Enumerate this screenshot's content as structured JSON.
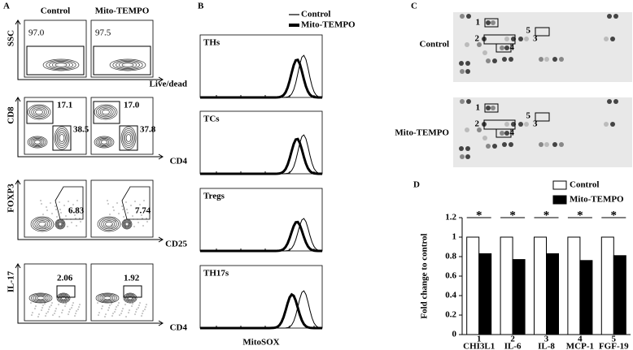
{
  "panels": {
    "A": {
      "label": "A",
      "columns": [
        "Control",
        "Mito-TEMPO"
      ],
      "rows": [
        {
          "y_label": "SSC",
          "x_label": "Live/dead",
          "gates": [
            [
              "97.0"
            ],
            [
              "97.5"
            ]
          ]
        },
        {
          "y_label": "CD8",
          "x_label": "CD4",
          "gates": [
            [
              "17.1",
              "38.5"
            ],
            [
              "17.0",
              "37.8"
            ]
          ]
        },
        {
          "y_label": "FOXP3",
          "x_label": "CD25",
          "gates": [
            [
              "6.83"
            ],
            [
              "7.74"
            ]
          ]
        },
        {
          "y_label": "IL-17",
          "x_label": "CD4",
          "gates": [
            [
              "2.06"
            ],
            [
              "1.92"
            ]
          ]
        }
      ]
    },
    "B": {
      "label": "B",
      "legend": [
        "Control",
        "Mito-TEMPO"
      ],
      "rows": [
        "THs",
        "TCs",
        "Tregs",
        "TH17s"
      ],
      "x_label": "MitoSOX"
    },
    "C": {
      "label": "C",
      "rows": [
        "Control",
        "Mito-TEMPO"
      ],
      "spots": [
        "1",
        "2",
        "3",
        "4",
        "5"
      ]
    },
    "D": {
      "label": "D"
    }
  },
  "chart_data": {
    "type": "bar",
    "categories": [
      "CHI3L1",
      "IL-6",
      "IL-8",
      "MCP-1",
      "FGF-19"
    ],
    "category_numbers": [
      "1",
      "2",
      "3",
      "4",
      "5"
    ],
    "significance": [
      "*",
      "*",
      "*",
      "*",
      "*"
    ],
    "y_label": "Fold change to control",
    "series": [
      {
        "name": "Control",
        "color": "#ffffff",
        "values": [
          1,
          1,
          1,
          1,
          1
        ]
      },
      {
        "name": "Mito-TEMPO",
        "color": "#000000",
        "values": [
          0.83,
          0.77,
          0.83,
          0.76,
          0.81
        ]
      }
    ],
    "ylim": [
      0,
      1.2
    ],
    "yticks": [
      0,
      0.2,
      0.4,
      0.6,
      0.8,
      1,
      1.2
    ]
  }
}
